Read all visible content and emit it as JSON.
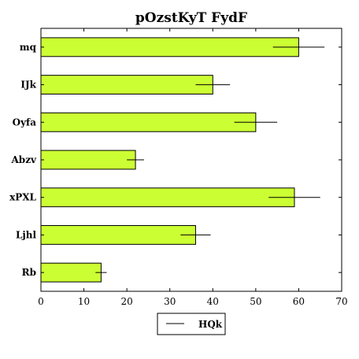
{
  "chart_data": {
    "type": "bar",
    "orientation": "horizontal",
    "title": "pOzstKyT FydF",
    "xlabel": "",
    "ylabel": "",
    "categories": [
      "mq",
      "IJk",
      "Oyfa",
      "Abzv",
      "xPXL",
      "Ljhl",
      "Rb"
    ],
    "series": [
      {
        "name": "HQk",
        "values": [
          60,
          40,
          50,
          22,
          59,
          36,
          14
        ],
        "errors": [
          6,
          4,
          5,
          2,
          6,
          3.5,
          1.3
        ]
      }
    ],
    "xlim": [
      0,
      70
    ],
    "xticks": [
      0,
      10,
      20,
      30,
      40,
      50,
      60,
      70
    ],
    "grid": false,
    "legend_position": "bottom-center",
    "bar_color": "#CCFF33"
  }
}
